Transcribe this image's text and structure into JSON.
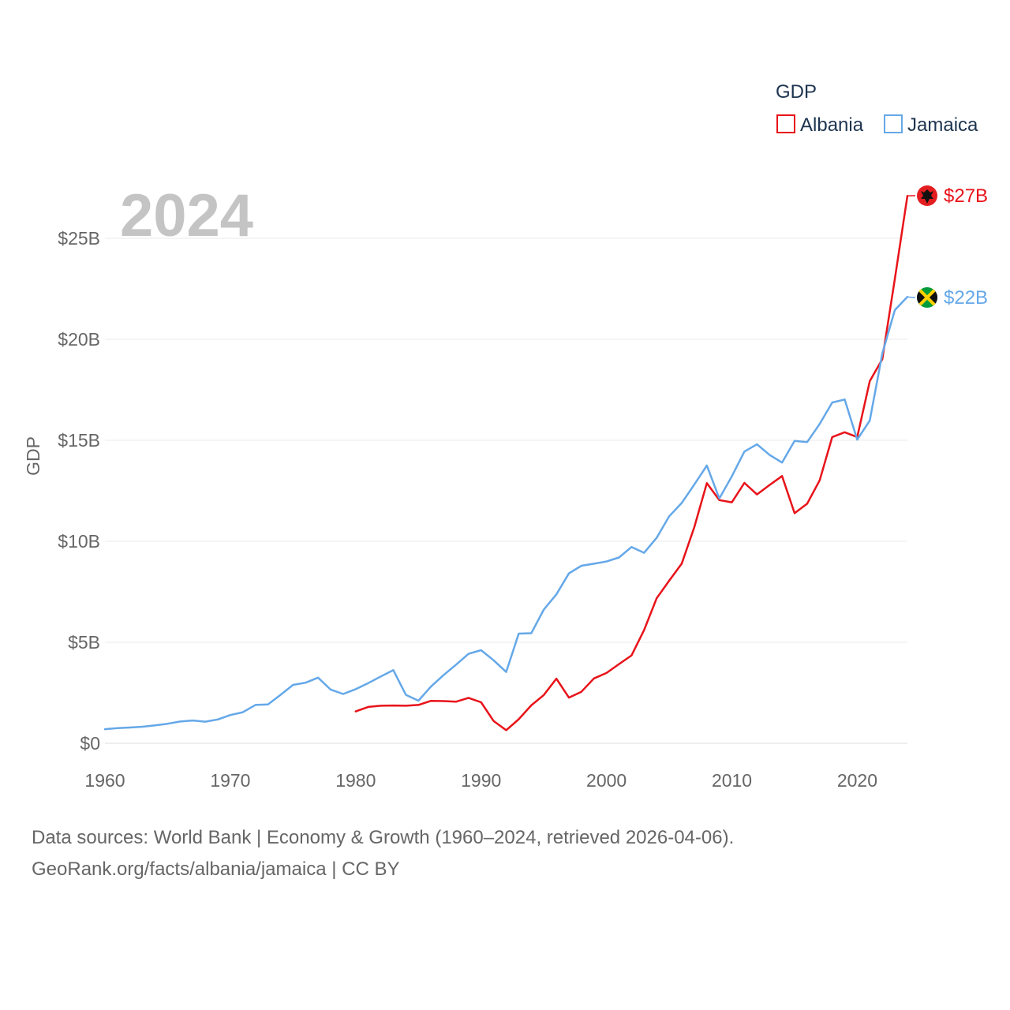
{
  "footer": {
    "line1": "Data sources: World Bank | Economy & Growth (1960–2024, retrieved 2026-04-06).",
    "line2": "GeoRank.org/facts/albania/jamaica | CC BY"
  },
  "chart_data": {
    "type": "line",
    "year_label": "2024",
    "ylabel": "GDP",
    "legend_title": "GDP",
    "legend_position": "top-right",
    "xlim": [
      1960,
      2024
    ],
    "ylim": [
      0,
      28
    ],
    "x_ticks": [
      1960,
      1970,
      1980,
      1990,
      2000,
      2010,
      2020
    ],
    "x_tick_labels": [
      "1960",
      "1970",
      "1980",
      "1990",
      "2000",
      "2010",
      "2020"
    ],
    "y_ticks": [
      0,
      5,
      10,
      15,
      20,
      25
    ],
    "y_tick_labels": [
      "$0",
      "$5B",
      "$10B",
      "$15B",
      "$20B",
      "$25B"
    ],
    "grid": true,
    "series": [
      {
        "name": "Albania",
        "color": "#e8131a",
        "end_label": "$27B",
        "x": [
          1980,
          1981,
          1982,
          1983,
          1984,
          1985,
          1986,
          1987,
          1988,
          1989,
          1990,
          1991,
          1992,
          1993,
          1994,
          1995,
          1996,
          1997,
          1998,
          1999,
          2000,
          2001,
          2002,
          2003,
          2004,
          2005,
          2006,
          2007,
          2008,
          2009,
          2010,
          2011,
          2012,
          2013,
          2014,
          2015,
          2016,
          2017,
          2018,
          2019,
          2020,
          2021,
          2022,
          2023,
          2024
        ],
        "values": [
          1.58,
          1.8,
          1.86,
          1.87,
          1.86,
          1.9,
          2.1,
          2.09,
          2.06,
          2.25,
          2.03,
          1.1,
          0.65,
          1.19,
          1.88,
          2.39,
          3.2,
          2.26,
          2.55,
          3.21,
          3.48,
          3.92,
          4.35,
          5.61,
          7.18,
          8.05,
          8.9,
          10.7,
          12.88,
          12.04,
          11.93,
          12.89,
          12.32,
          12.78,
          13.23,
          11.39,
          11.86,
          13.02,
          15.16,
          15.4,
          15.16,
          17.93,
          19.02,
          23.0,
          27.1
        ]
      },
      {
        "name": "Jamaica",
        "color": "#65a8e8",
        "end_label": "$22B",
        "x": [
          1960,
          1961,
          1962,
          1963,
          1964,
          1965,
          1966,
          1967,
          1968,
          1969,
          1970,
          1971,
          1972,
          1973,
          1974,
          1975,
          1976,
          1977,
          1978,
          1979,
          1980,
          1981,
          1982,
          1983,
          1984,
          1985,
          1986,
          1987,
          1988,
          1989,
          1990,
          1991,
          1992,
          1993,
          1994,
          1995,
          1996,
          1997,
          1998,
          1999,
          2000,
          2001,
          2002,
          2003,
          2004,
          2005,
          2006,
          2007,
          2008,
          2009,
          2010,
          2011,
          2012,
          2013,
          2014,
          2015,
          2016,
          2017,
          2018,
          2019,
          2020,
          2021,
          2022,
          2023,
          2024
        ],
        "values": [
          0.7,
          0.75,
          0.78,
          0.82,
          0.89,
          0.97,
          1.08,
          1.13,
          1.07,
          1.18,
          1.4,
          1.54,
          1.9,
          1.92,
          2.4,
          2.89,
          3.0,
          3.25,
          2.66,
          2.44,
          2.68,
          2.98,
          3.31,
          3.62,
          2.4,
          2.11,
          2.81,
          3.37,
          3.89,
          4.43,
          4.61,
          4.11,
          3.53,
          5.43,
          5.45,
          6.62,
          7.37,
          8.41,
          8.79,
          8.89,
          9.0,
          9.2,
          9.72,
          9.43,
          10.17,
          11.24,
          11.9,
          12.81,
          13.75,
          12.12,
          13.22,
          14.44,
          14.8,
          14.28,
          13.9,
          14.97,
          14.91,
          15.81,
          16.87,
          17.02,
          15.03,
          15.98,
          19.3,
          21.45,
          22.1
        ]
      }
    ]
  }
}
